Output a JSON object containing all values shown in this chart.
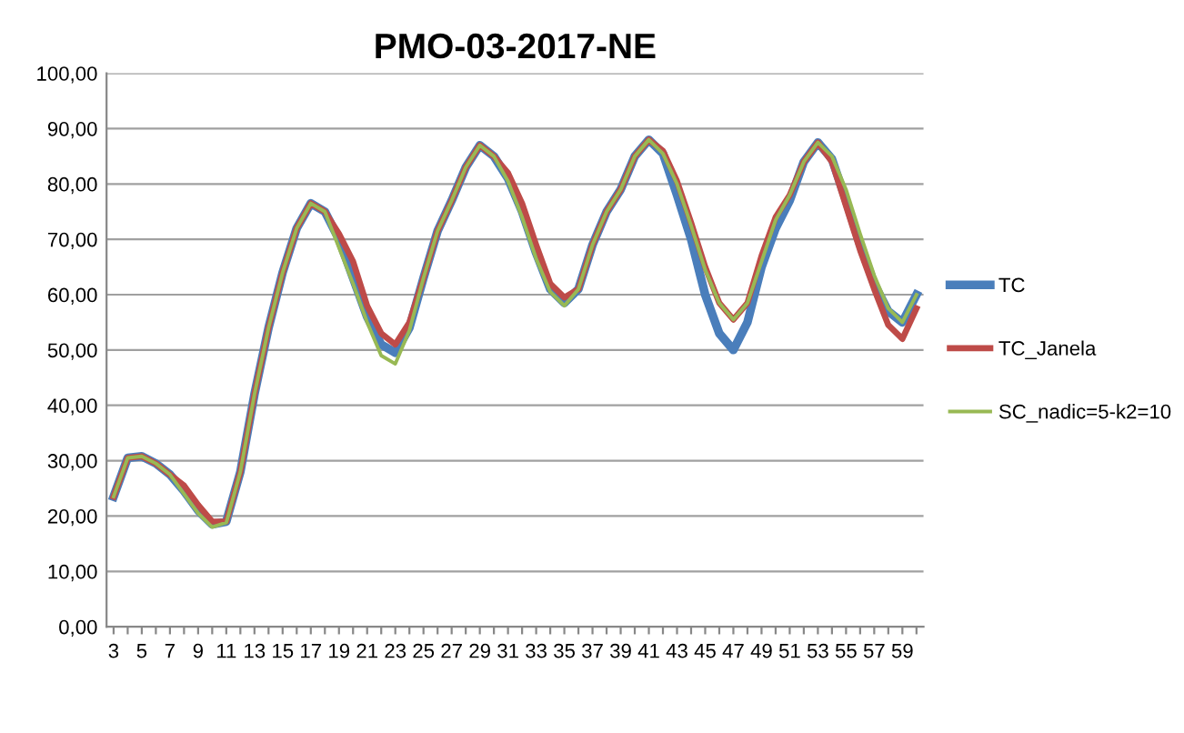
{
  "chart_data": {
    "type": "line",
    "title": "PMO-03-2017-NE",
    "categories": [
      "3",
      null,
      "5",
      null,
      "7",
      null,
      "9",
      null,
      "11",
      null,
      "13",
      null,
      "15",
      null,
      "17",
      null,
      "19",
      null,
      "21",
      null,
      "23",
      null,
      "25",
      null,
      "27",
      null,
      "29",
      null,
      "31",
      null,
      "33",
      null,
      "35",
      null,
      "37",
      null,
      "39",
      null,
      "41",
      null,
      "43",
      null,
      "45",
      null,
      "47",
      null,
      "49",
      null,
      "51",
      null,
      "53",
      null,
      "55",
      null,
      "57",
      null,
      "59",
      null
    ],
    "series": [
      {
        "name": "TC",
        "color": "#4a7ebb",
        "values": [
          23.5,
          30.5,
          30.8,
          29.5,
          27.5,
          24.5,
          21,
          18.5,
          19,
          28,
          42,
          54,
          64,
          72,
          76.5,
          75,
          70,
          63,
          56,
          51,
          49.5,
          54,
          63,
          71.5,
          77,
          83,
          87,
          85,
          81,
          75,
          67.5,
          61,
          58.5,
          61,
          69,
          75,
          79,
          85,
          88,
          85.5,
          78,
          70,
          60,
          53,
          50,
          55,
          65,
          72,
          77,
          84,
          87.5,
          84.5,
          77,
          69,
          62,
          57,
          55,
          60
        ]
      },
      {
        "name": "TC_Janela",
        "color": "#be4b48",
        "values": [
          23.5,
          30.5,
          30.8,
          29.5,
          27.5,
          25.5,
          22,
          19,
          19,
          28,
          42,
          54,
          64,
          72,
          76.5,
          75,
          71,
          66,
          58,
          53,
          51,
          55,
          63,
          71.5,
          77,
          83,
          87,
          85,
          82,
          76.5,
          69,
          62,
          59.5,
          61,
          69,
          75,
          79,
          85,
          88,
          86,
          80.5,
          73,
          65,
          58.5,
          55.5,
          58.5,
          67,
          74,
          78,
          84,
          87.5,
          84,
          76,
          68,
          61,
          54.5,
          52,
          57.5
        ]
      },
      {
        "name": "SC_nadic=5-k2=10",
        "color": "#98b954",
        "values": [
          23.5,
          30.5,
          30.8,
          29.5,
          27.5,
          24,
          20.5,
          18,
          18.8,
          28,
          42,
          54,
          64,
          72,
          76.5,
          75,
          68.5,
          62,
          55,
          49,
          47.5,
          53.5,
          63,
          71.5,
          77,
          83,
          87,
          85,
          80.5,
          74,
          66.5,
          60.5,
          58,
          61,
          69,
          75,
          79,
          85,
          88,
          85.5,
          80,
          72.5,
          64.5,
          58.5,
          55.5,
          58.5,
          66,
          73.5,
          78,
          84,
          87.5,
          85,
          79,
          71,
          63.5,
          57.5,
          55,
          60
        ]
      }
    ],
    "ylim": [
      0,
      100
    ],
    "yticks": [
      {
        "value": 0,
        "label": "0,00"
      },
      {
        "value": 10,
        "label": "10,00"
      },
      {
        "value": 20,
        "label": "20,00"
      },
      {
        "value": 30,
        "label": "30,00"
      },
      {
        "value": 40,
        "label": "40,00"
      },
      {
        "value": 50,
        "label": "50,00"
      },
      {
        "value": 60,
        "label": "60,00"
      },
      {
        "value": 70,
        "label": "70,00"
      },
      {
        "value": 80,
        "label": "80,00"
      },
      {
        "value": 90,
        "label": "90,00"
      },
      {
        "value": 100,
        "label": "100,00"
      }
    ],
    "grid": "y",
    "legend": "right",
    "marker": "none",
    "line_style": "solid"
  }
}
